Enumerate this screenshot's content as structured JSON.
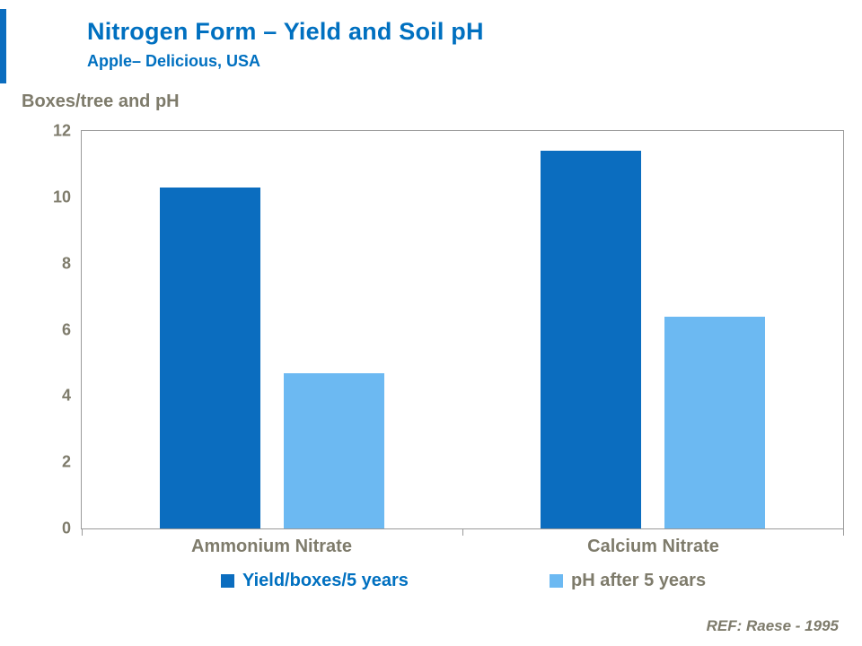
{
  "header": {
    "title": "Nitrogen Form – Yield and Soil pH",
    "subtitle": "Apple– Delicious,  USA"
  },
  "colors": {
    "title_blue": "#0070c0",
    "label_gray": "#7e7b6b",
    "series1_dark_blue": "#0b6dbf",
    "series2_light_blue": "#6cb9f2"
  },
  "chart_data": {
    "type": "bar",
    "title": "Nitrogen Form – Yield and Soil pH",
    "subtitle": "Apple– Delicious, USA",
    "axis_title": "Boxes/tree and pH",
    "categories": [
      "Ammonium Nitrate",
      "Calcium Nitrate"
    ],
    "series": [
      {
        "name": "Yield/boxes/5 years",
        "color": "#0b6dbf",
        "values": [
          10.3,
          11.4
        ]
      },
      {
        "name": "pH after 5 years",
        "color": "#6cb9f2",
        "values": [
          4.7,
          6.4
        ]
      }
    ],
    "ylim": [
      0,
      12
    ],
    "yticks": [
      12,
      10,
      8,
      6,
      4,
      2,
      0
    ],
    "grid": false,
    "legend_position": "bottom"
  },
  "footer": {
    "ref": "REF: Raese - 1995"
  }
}
